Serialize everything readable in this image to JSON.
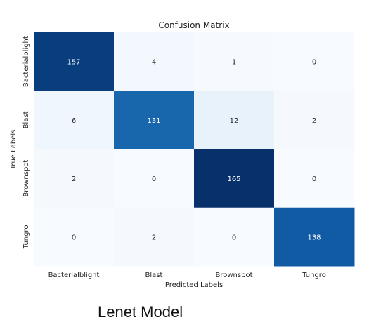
{
  "caption": "Lenet Model",
  "chart_data": {
    "type": "heatmap",
    "title": "Confusion Matrix",
    "xlabel": "Predicted Labels",
    "ylabel": "True Labels",
    "x_categories": [
      "Bacterialblight",
      "Blast",
      "Brownspot",
      "Tungro"
    ],
    "y_categories": [
      "Bacterialblight",
      "Blast",
      "Brownspot",
      "Tungro"
    ],
    "values": [
      [
        157,
        4,
        1,
        0
      ],
      [
        6,
        131,
        12,
        2
      ],
      [
        2,
        0,
        165,
        0
      ],
      [
        0,
        2,
        0,
        138
      ]
    ],
    "colormap": "Blues",
    "colorbar": false,
    "annotated": true
  }
}
